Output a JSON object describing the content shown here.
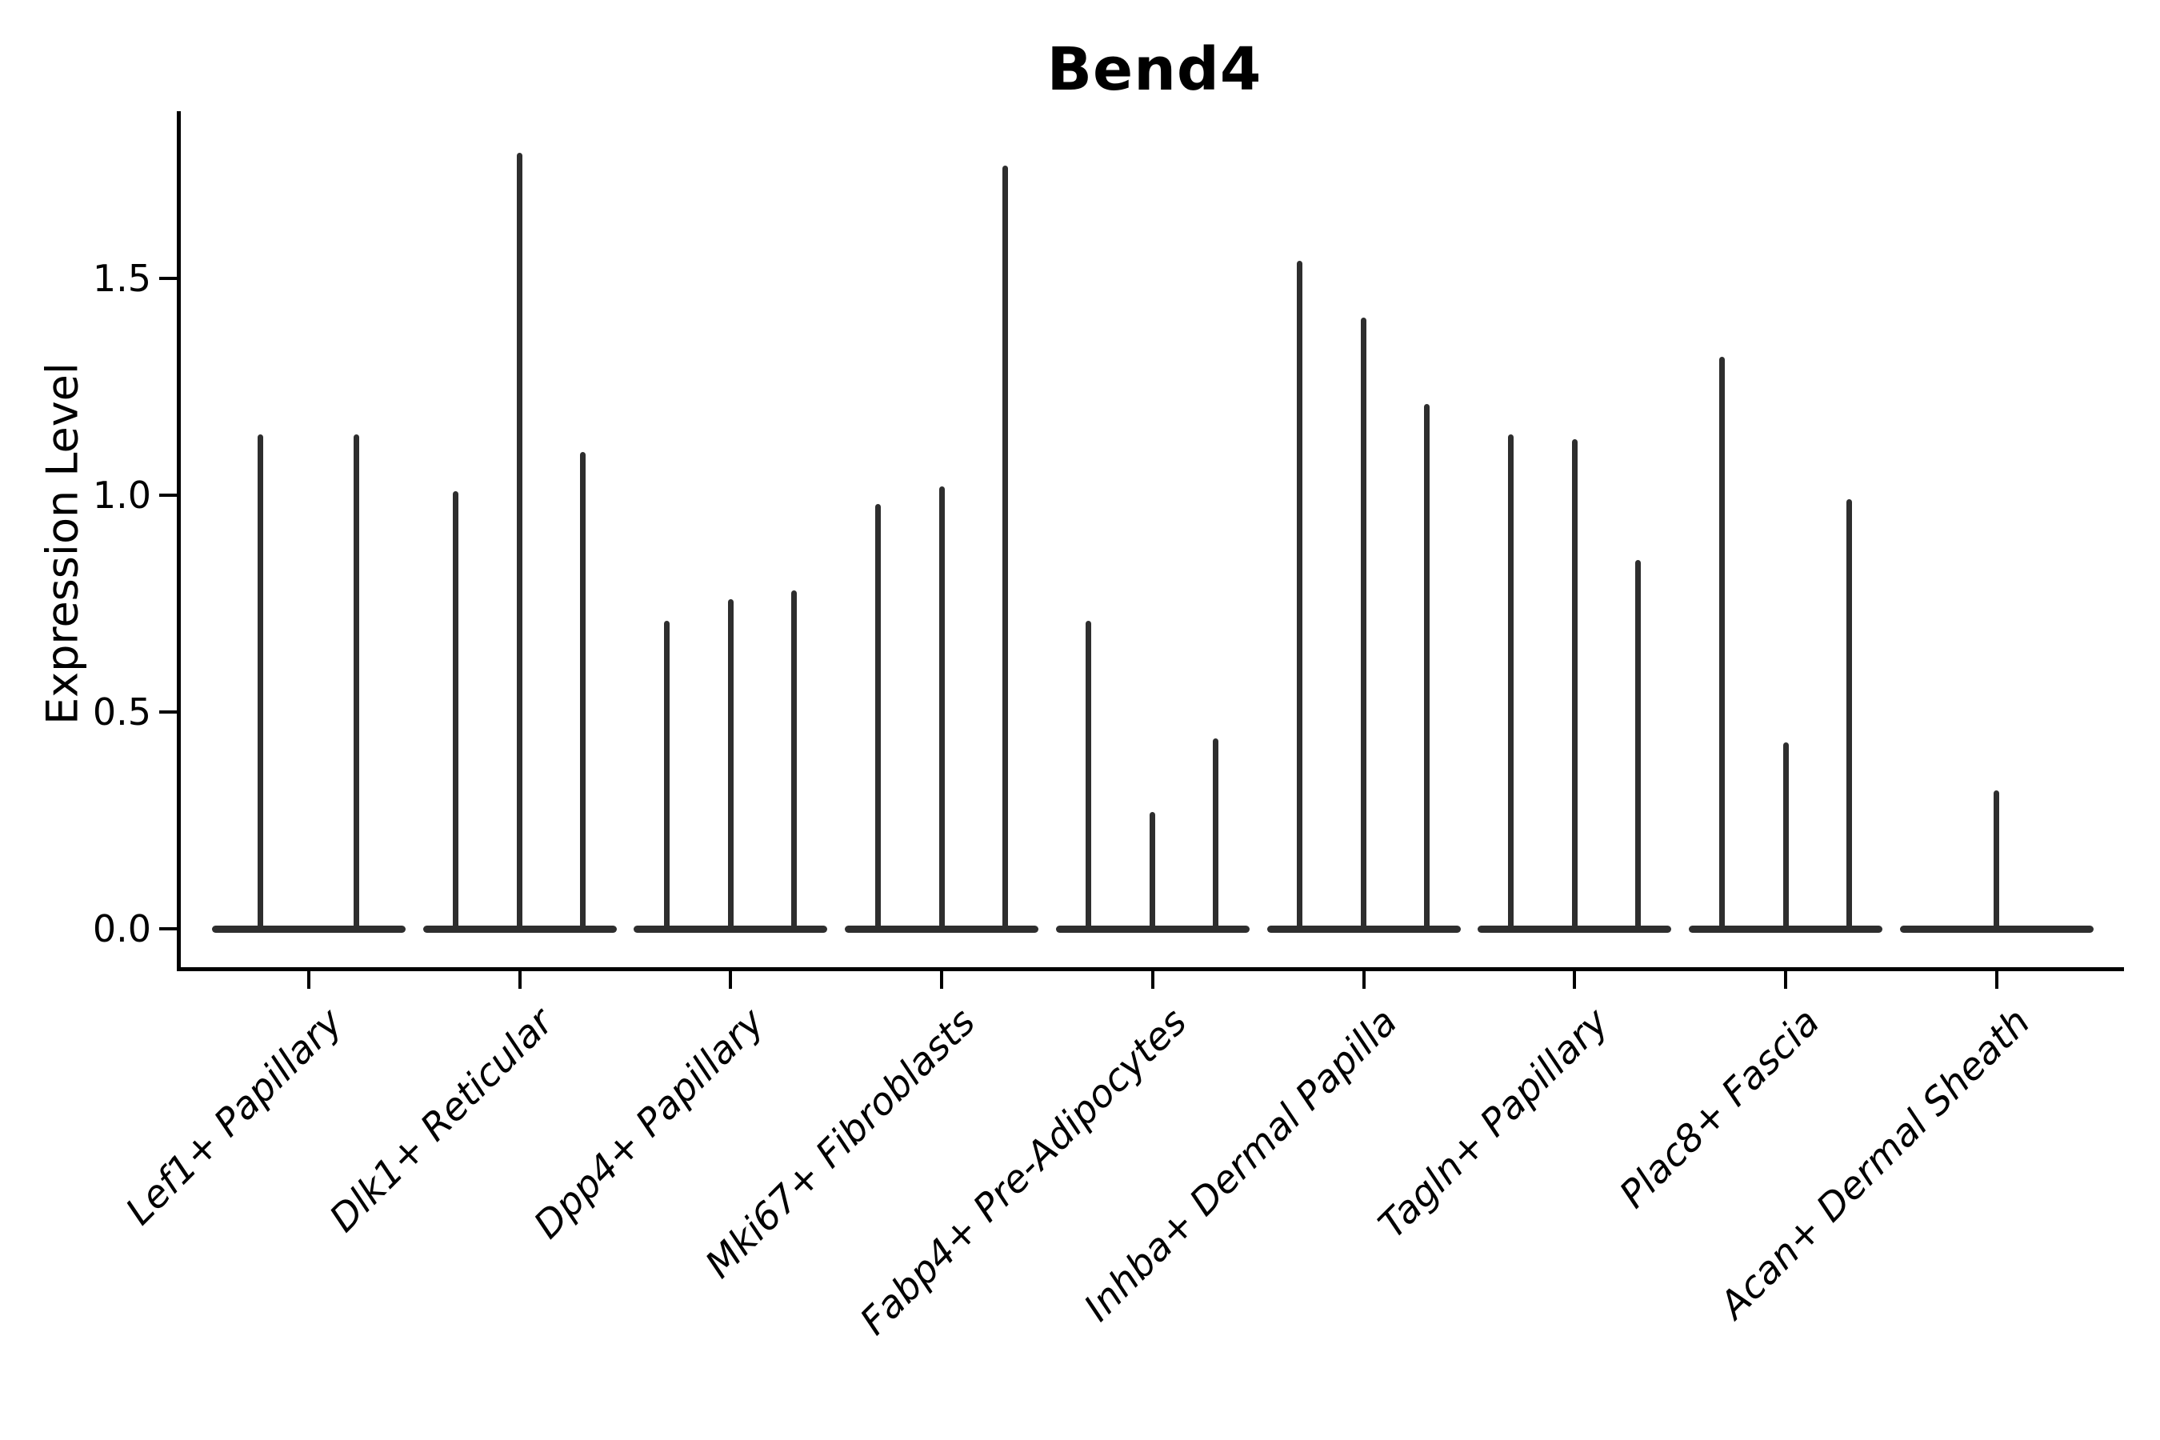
{
  "title": "Bend4",
  "chart_data": {
    "type": "violin",
    "title": "Bend4",
    "xlabel": "",
    "ylabel": "Expression Level",
    "ytick_labels": [
      "0.0",
      "0.5",
      "1.0",
      "1.5"
    ],
    "ytick_values": [
      0.0,
      0.5,
      1.0,
      1.5
    ],
    "ylim": [
      -0.09,
      1.89
    ],
    "grid": false,
    "legend": "none",
    "categories": [
      "Lef1+ Papillary",
      "Dlk1+ Reticular",
      "Dpp4+ Papillary",
      "Mki67+ Fibroblasts",
      "Fabp4+ Pre-Adipocytes",
      "Inhba+ Dermal Papilla",
      "Tagln+ Papillary",
      "Plac8+ Fascia",
      "Acan+ Dermal Sheath"
    ],
    "groups": [
      {
        "category": "Lef1+ Papillary",
        "spike_values": [
          1.14,
          1.14
        ]
      },
      {
        "category": "Dlk1+ Reticular",
        "spike_values": [
          1.01,
          1.79,
          1.1
        ]
      },
      {
        "category": "Dpp4+ Papillary",
        "spike_values": [
          0.71,
          0.76,
          0.78
        ]
      },
      {
        "category": "Mki67+ Fibroblasts",
        "spike_values": [
          0.98,
          1.02,
          1.76
        ]
      },
      {
        "category": "Fabp4+ Pre-Adipocytes",
        "spike_values": [
          0.71,
          0.27,
          0.44
        ]
      },
      {
        "category": "Inhba+ Dermal Papilla",
        "spike_values": [
          1.54,
          1.41,
          1.21
        ]
      },
      {
        "category": "Tagln+ Papillary",
        "spike_values": [
          1.14,
          1.13,
          0.85
        ]
      },
      {
        "category": "Plac8+ Fascia",
        "spike_values": [
          1.32,
          0.43,
          0.99
        ]
      },
      {
        "category": "Acan+ Dermal Sheath",
        "spike_values": [
          0.32
        ]
      }
    ],
    "colors": {
      "violin_stroke": "#2e2e2e",
      "axis": "#000000",
      "text": "#000000",
      "background": "#ffffff"
    }
  }
}
